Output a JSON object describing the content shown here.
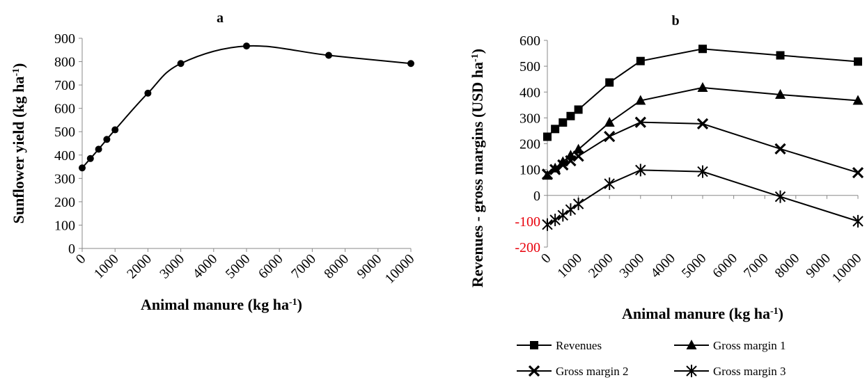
{
  "chart_data": [
    {
      "type": "line",
      "title": "a",
      "xlabel": "Animal manure (kg ha",
      "xlabel_sup": "-1",
      "xlabel_end": ")",
      "ylabel": "Sunflower yield (kg ha",
      "ylabel_sup": "-1",
      "ylabel_end": ")",
      "xlim": [
        0,
        10000
      ],
      "ylim": [
        0,
        900
      ],
      "x_ticks": [
        0,
        1000,
        2000,
        3000,
        4000,
        5000,
        6000,
        7000,
        8000,
        9000,
        10000
      ],
      "y_ticks": [
        0,
        100,
        200,
        300,
        400,
        500,
        600,
        700,
        800,
        900
      ],
      "grid": false,
      "series": [
        {
          "marker": "circle",
          "smooth": true,
          "x": [
            0,
            250,
            500,
            750,
            1000,
            2000,
            3000,
            5000,
            7500,
            10000
          ],
          "y": [
            345,
            385,
            425,
            467,
            508,
            665,
            792,
            867,
            827,
            792
          ]
        }
      ]
    },
    {
      "type": "line",
      "title": "b",
      "xlabel": "Animal manure (kg ha",
      "xlabel_sup": "-1",
      "xlabel_end": ")",
      "ylabel": "Revenues - gross margins (USD ha",
      "ylabel_sup": "-1",
      "ylabel_end": ")",
      "xlim": [
        0,
        10000
      ],
      "ylim": [
        -200,
        600
      ],
      "x_ticks": [
        0,
        1000,
        2000,
        3000,
        4000,
        5000,
        6000,
        7000,
        8000,
        9000,
        10000
      ],
      "y_ticks": [
        -200,
        -100,
        0,
        100,
        200,
        300,
        400,
        500,
        600
      ],
      "negative_tick_color": "#e8000b",
      "grid": false,
      "legend_position": "bottom",
      "x": [
        0,
        250,
        500,
        750,
        1000,
        2000,
        3000,
        5000,
        7500,
        10000
      ],
      "series": [
        {
          "name": "Revenues",
          "marker": "square",
          "y": [
            227,
            257,
            282,
            307,
            332,
            437,
            520,
            567,
            542,
            518
          ]
        },
        {
          "name": "Gross margin 1",
          "marker": "triangle",
          "y": [
            77,
            105,
            130,
            155,
            178,
            282,
            367,
            417,
            390,
            367
          ]
        },
        {
          "name": "Gross margin 2",
          "marker": "x",
          "y": [
            82,
            100,
            118,
            134,
            152,
            228,
            283,
            277,
            180,
            88
          ]
        },
        {
          "name": "Gross margin 3",
          "marker": "star",
          "y": [
            -113,
            -95,
            -77,
            -55,
            -33,
            45,
            98,
            92,
            -5,
            -100
          ]
        }
      ]
    }
  ]
}
